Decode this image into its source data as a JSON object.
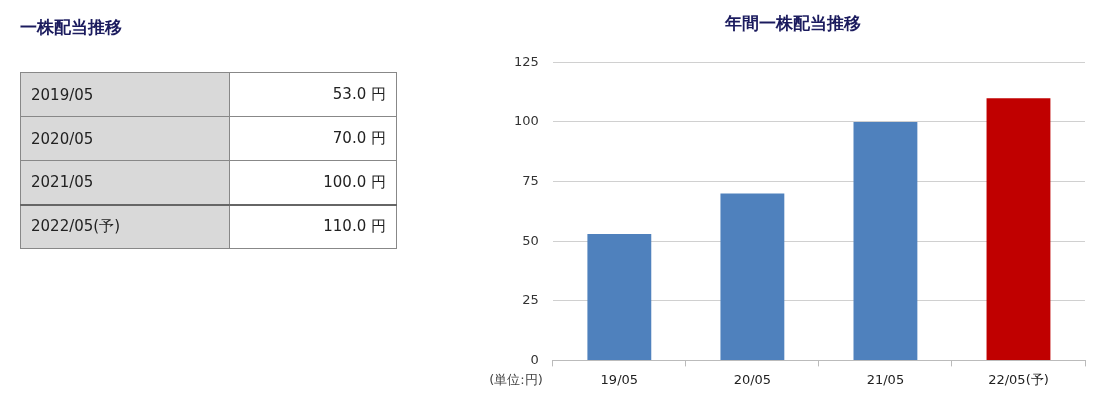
{
  "chart_data": [
    {
      "type": "other",
      "title": "一株配当推移",
      "annotations": [
        "2019/05",
        "53.0 円",
        "2020/05",
        "70.0 円",
        "2021/05",
        "100.0 円",
        "2022/05(予)",
        "110.0 円"
      ]
    },
    {
      "type": "bar",
      "title": "年間一株配当推移",
      "categories": [
        "19/05",
        "20/05",
        "21/05",
        "22/05(予)"
      ],
      "values": [
        53,
        70,
        100,
        110
      ],
      "colors": [
        "#4f81bd",
        "#4f81bd",
        "#4f81bd",
        "#c00000"
      ],
      "ylim": [
        0,
        125
      ],
      "yticks": [
        0,
        25,
        50,
        75,
        100,
        125
      ],
      "grid": "y",
      "annotations": [
        "(単位:円)"
      ]
    }
  ]
}
